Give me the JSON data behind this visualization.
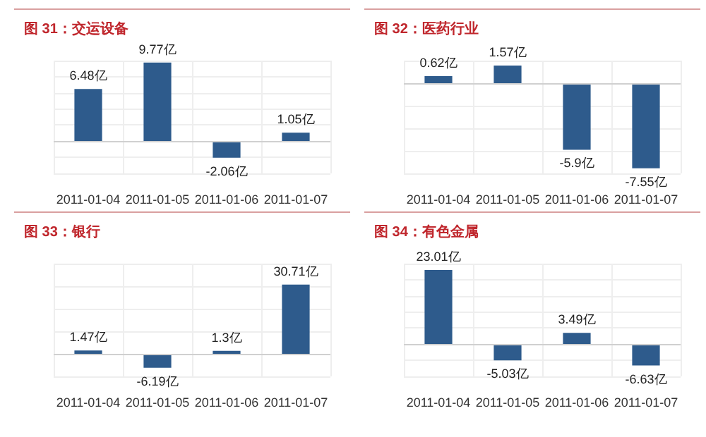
{
  "chart_data": [
    {
      "type": "bar",
      "title": "图 31：交运设备",
      "categories": [
        "2011-01-04",
        "2011-01-05",
        "2011-01-06",
        "2011-01-07"
      ],
      "values": [
        6.48,
        9.77,
        -2.06,
        1.05
      ],
      "value_labels": [
        "6.48亿",
        "9.77亿",
        "-2.06亿",
        "1.05亿"
      ],
      "color": "#2e5b8c",
      "grid": true
    },
    {
      "type": "bar",
      "title": "图 32：医药行业",
      "categories": [
        "2011-01-04",
        "2011-01-05",
        "2011-01-06",
        "2011-01-07"
      ],
      "values": [
        0.62,
        1.57,
        -5.9,
        -7.55
      ],
      "value_labels": [
        "0.62亿",
        "1.57亿",
        "-5.9亿",
        "-7.55亿"
      ],
      "color": "#2e5b8c",
      "grid": true
    },
    {
      "type": "bar",
      "title": "图 33：银行",
      "categories": [
        "2011-01-04",
        "2011-01-05",
        "2011-01-06",
        "2011-01-07"
      ],
      "values": [
        1.47,
        -6.19,
        1.3,
        30.71
      ],
      "value_labels": [
        "1.47亿",
        "-6.19亿",
        "1.3亿",
        "30.71亿"
      ],
      "color": "#2e5b8c",
      "grid": true
    },
    {
      "type": "bar",
      "title": "图 34：有色金属",
      "categories": [
        "2011-01-04",
        "2011-01-05",
        "2011-01-06",
        "2011-01-07"
      ],
      "values": [
        23.01,
        -5.03,
        3.49,
        -6.63
      ],
      "value_labels": [
        "23.01亿",
        "-5.03亿",
        "3.49亿",
        "-6.63亿"
      ],
      "color": "#2e5b8c",
      "grid": true
    }
  ]
}
